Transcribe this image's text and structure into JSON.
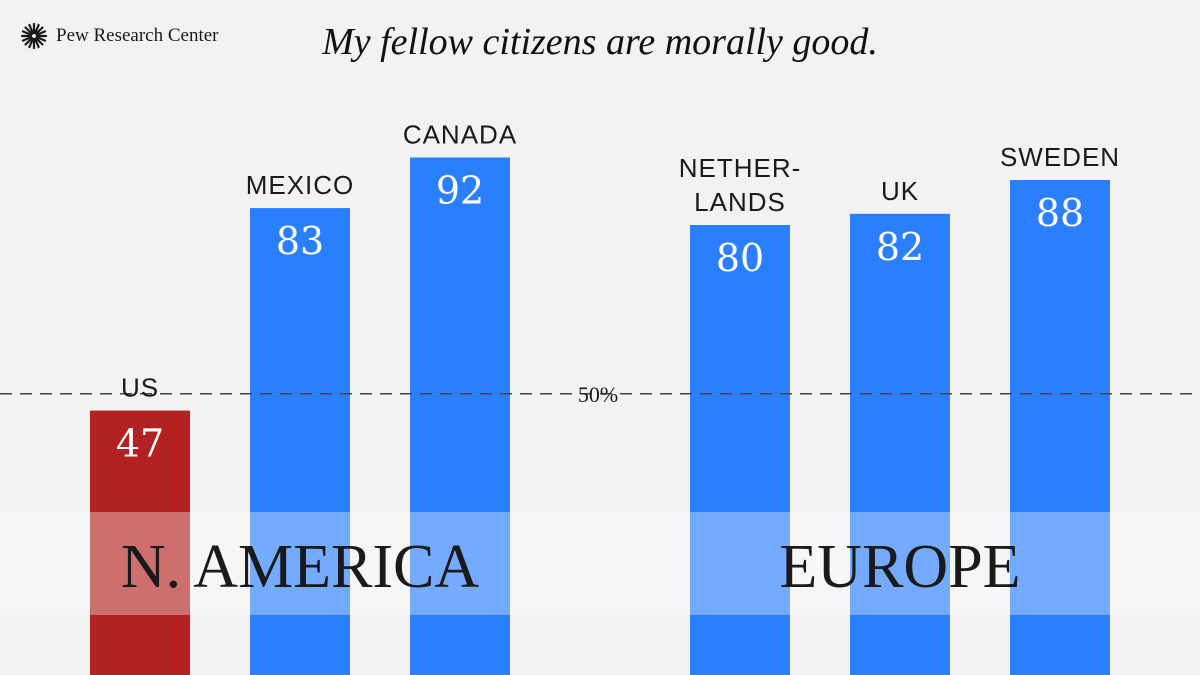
{
  "brand": {
    "name": "Pew Research Center",
    "logo_icon": "pew-starburst-icon"
  },
  "colors": {
    "us": "#b22222",
    "other": "#2a7fff",
    "band": "#ffffff",
    "reference": "#444444",
    "background": "#f2f2f2"
  },
  "chart_data": {
    "type": "bar",
    "title": "My fellow citizens are morally good.",
    "xlabel": "",
    "ylabel": "",
    "ylim": [
      0,
      110
    ],
    "grid": false,
    "legend": "none",
    "categories": [
      {
        "label": [
          "US"
        ],
        "value": 47,
        "group": "N. AMERICA",
        "highlight": true
      },
      {
        "label": [
          "MEXICO"
        ],
        "value": 83,
        "group": "N. AMERICA",
        "highlight": false
      },
      {
        "label": [
          "CANADA"
        ],
        "value": 92,
        "group": "N. AMERICA",
        "highlight": false
      },
      {
        "label": [
          "NETHER-",
          "LANDS"
        ],
        "value": 80,
        "group": "EUROPE",
        "highlight": false
      },
      {
        "label": [
          "UK"
        ],
        "value": 82,
        "group": "EUROPE",
        "highlight": false
      },
      {
        "label": [
          "SWEDEN"
        ],
        "value": 88,
        "group": "EUROPE",
        "highlight": false
      }
    ],
    "reference_line": {
      "value": 50,
      "label": "50%"
    },
    "groups": [
      "N. AMERICA",
      "EUROPE"
    ]
  }
}
